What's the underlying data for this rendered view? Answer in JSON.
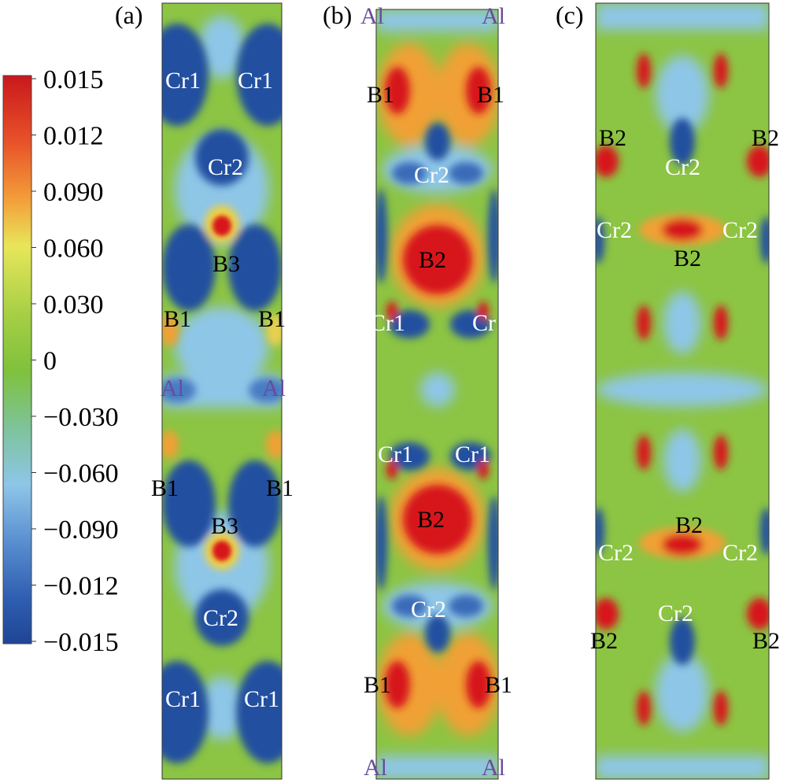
{
  "colors": {
    "red": "#d7191c",
    "orange": "#f28a2e",
    "yellow": "#e8e65a",
    "green": "#93c740",
    "light_blue": "#8ec6e8",
    "dark_blue": "#2450a0",
    "label_white": "#ffffff",
    "label_black": "#000000",
    "label_purple": "#6a4c9c"
  },
  "colorbar": {
    "ticks": [
      "0.015",
      "0.012",
      "0.090",
      "0.060",
      "0.030",
      "0",
      "−0.030",
      "−0.060",
      "−0.090",
      "−0.012",
      "−0.015"
    ]
  },
  "panels": [
    {
      "id": "a",
      "label": "(a)",
      "atoms": [
        {
          "text": "Cr1",
          "color": "white"
        },
        {
          "text": "Cr1",
          "color": "white"
        },
        {
          "text": "Cr2",
          "color": "white"
        },
        {
          "text": "B3",
          "color": "black"
        },
        {
          "text": "B1",
          "color": "black"
        },
        {
          "text": "B1",
          "color": "black"
        },
        {
          "text": "Al",
          "color": "purple"
        },
        {
          "text": "Al",
          "color": "purple"
        },
        {
          "text": "B1",
          "color": "black"
        },
        {
          "text": "B1",
          "color": "black"
        },
        {
          "text": "B3",
          "color": "black"
        },
        {
          "text": "Cr2",
          "color": "white"
        },
        {
          "text": "Cr1",
          "color": "white"
        },
        {
          "text": "Cr1",
          "color": "white"
        }
      ]
    },
    {
      "id": "b",
      "label": "(b)",
      "atoms": [
        {
          "text": "Al",
          "color": "purple"
        },
        {
          "text": "Al",
          "color": "purple"
        },
        {
          "text": "B1",
          "color": "black"
        },
        {
          "text": "B1",
          "color": "black"
        },
        {
          "text": "Cr2",
          "color": "white"
        },
        {
          "text": "B2",
          "color": "black"
        },
        {
          "text": "Cr1",
          "color": "white"
        },
        {
          "text": "Cr",
          "color": "white"
        },
        {
          "text": "Cr1",
          "color": "white"
        },
        {
          "text": "Cr1",
          "color": "white"
        },
        {
          "text": "B2",
          "color": "black"
        },
        {
          "text": "Cr2",
          "color": "white"
        },
        {
          "text": "B1",
          "color": "black"
        },
        {
          "text": "B1",
          "color": "black"
        },
        {
          "text": "Al",
          "color": "purple"
        },
        {
          "text": "Al",
          "color": "purple"
        }
      ]
    },
    {
      "id": "c",
      "label": "(c)",
      "atoms": [
        {
          "text": "B2",
          "color": "black"
        },
        {
          "text": "B2",
          "color": "black"
        },
        {
          "text": "Cr2",
          "color": "white"
        },
        {
          "text": "Cr2",
          "color": "white"
        },
        {
          "text": "Cr2",
          "color": "white"
        },
        {
          "text": "B2",
          "color": "black"
        },
        {
          "text": "B2",
          "color": "black"
        },
        {
          "text": "Cr2",
          "color": "white"
        },
        {
          "text": "Cr2",
          "color": "white"
        },
        {
          "text": "Cr2",
          "color": "white"
        },
        {
          "text": "B2",
          "color": "black"
        },
        {
          "text": "B2",
          "color": "black"
        }
      ]
    }
  ]
}
